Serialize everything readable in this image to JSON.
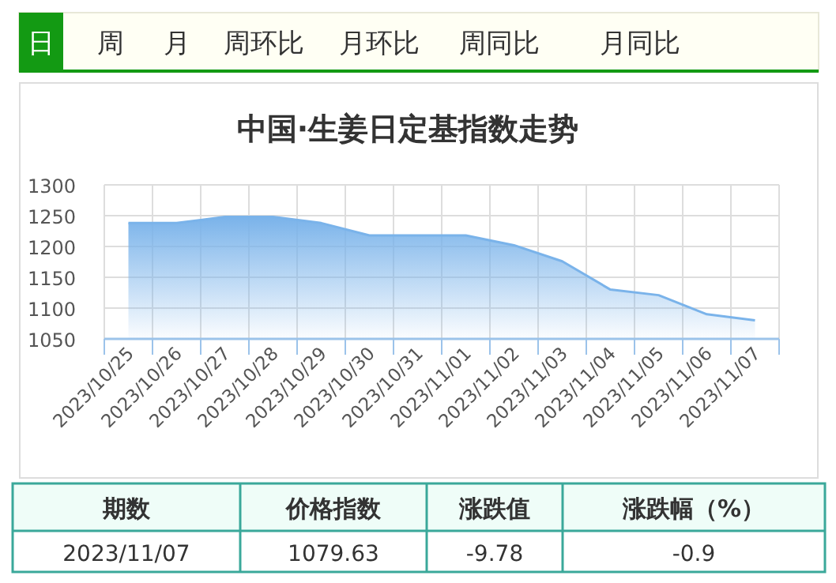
{
  "chart_data": {
    "type": "area",
    "title": "中国·生姜日定基指数走势",
    "categories": [
      "2023/10/25",
      "2023/10/26",
      "2023/10/27",
      "2023/10/28",
      "2023/10/29",
      "2023/10/30",
      "2023/10/31",
      "2023/11/01",
      "2023/11/02",
      "2023/11/03",
      "2023/11/04",
      "2023/11/05",
      "2023/11/06",
      "2023/11/07"
    ],
    "series": [
      {
        "color": "#7ab3ea",
        "values": [
          1238,
          1238,
          1248,
          1248,
          1238,
          1218,
          1218,
          1218,
          1202,
          1176,
          1130,
          1121,
          1090,
          1080
        ]
      }
    ],
    "ylim": [
      1050,
      1300
    ],
    "yticks": [
      1050,
      1100,
      1150,
      1200,
      1250,
      1300
    ],
    "grid": true,
    "annotations": [
      "日",
      "周",
      "月",
      "周环比",
      "月环比",
      "周同比",
      "月同比",
      "期数",
      "价格指数",
      "涨跌值",
      "涨跌幅（%）",
      "2023/11/07",
      "1079.63",
      "-9.78",
      "-0.9"
    ]
  }
}
